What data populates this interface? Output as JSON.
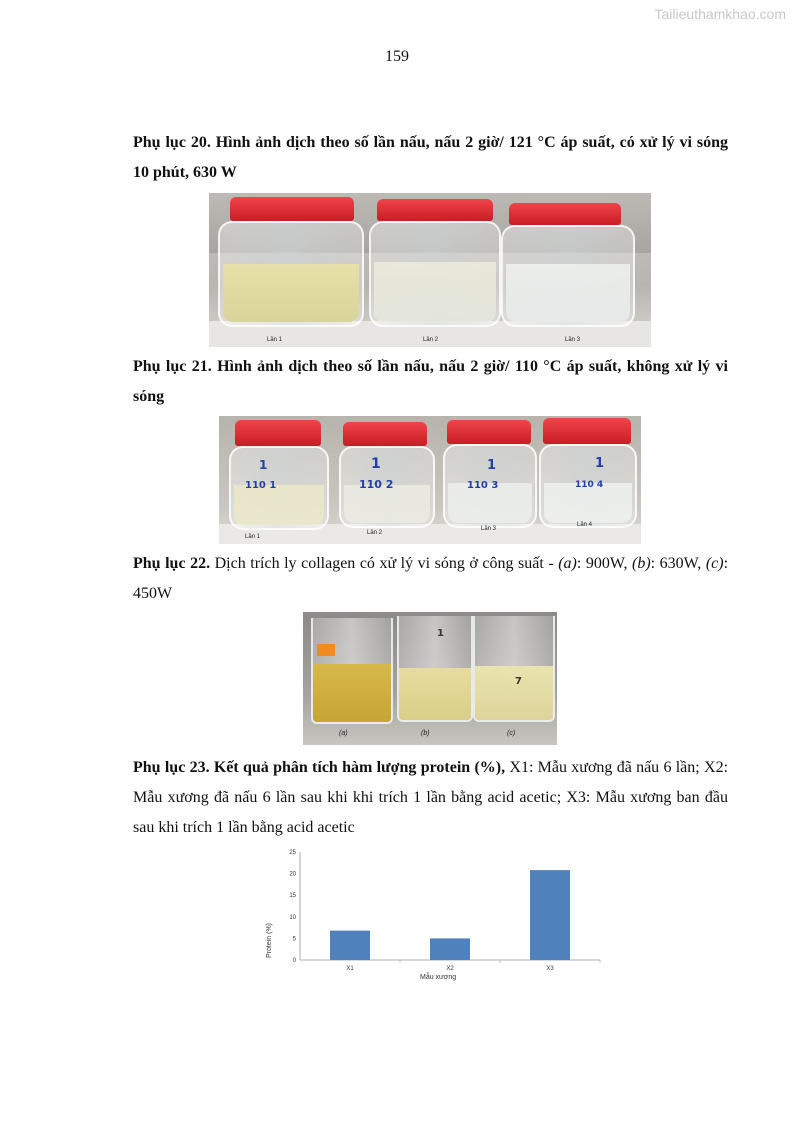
{
  "watermark": "Tailieuthamkhao.com",
  "page_number": "159",
  "appendix20": {
    "label": "Phụ lục 20. Hình ảnh dịch theo số lần nấu, nấu 2 giờ/ 121 °C áp suất, có xử lý vi sóng 10 phút, 630 W",
    "captions": [
      "Lần 1",
      "Lần 2",
      "Lần 3"
    ]
  },
  "appendix21": {
    "label": "Phụ lục 21. Hình ảnh dịch theo số lần nấu, nấu 2 giờ/ 110 °C áp suất, không xử lý vi sóng",
    "captions": [
      "Lần 1",
      "Lần 2",
      "Lần 3",
      "Lần 4"
    ]
  },
  "appendix22": {
    "label": "Phụ lục 22.",
    "text1": " Dịch trích ly collagen có xử lý vi sóng ở công suất - ",
    "a": "(a)",
    "t_a": ": 900W, ",
    "b": "(b)",
    "t_b": ": 630W, ",
    "c": "(c)",
    "t_c": ": 450W",
    "captions": [
      "(a)",
      "(b)",
      "(c)"
    ]
  },
  "appendix23": {
    "label": "Phụ lục 23. Kết quả phân tích hàm lượng protein (%),",
    "text": " X1: Mẫu xương đã nấu 6 lần; X2: Mẫu xương đã nấu 6 lần sau khi khi trích 1 lần bằng acid acetic; X3: Mẫu xương ban đầu sau khi trích 1 lần bằng acid acetic"
  },
  "chart_data": {
    "type": "bar",
    "categories": [
      "X1",
      "X2",
      "X3"
    ],
    "values": [
      6.8,
      5.0,
      20.8
    ],
    "ylim": [
      0,
      25
    ],
    "yticks": [
      "0",
      "5",
      "10",
      "15",
      "20",
      "25"
    ],
    "xlabel": "Mẫu xương",
    "ylabel": "Protein (%)",
    "bar_color": "#4f81bd"
  }
}
